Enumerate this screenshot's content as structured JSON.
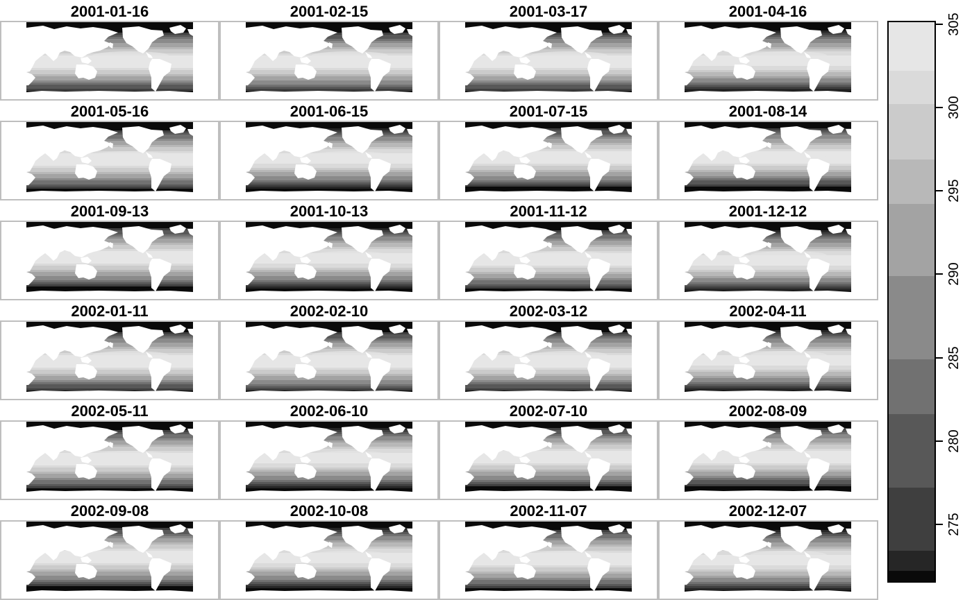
{
  "panels": [
    {
      "title": "2001-01-16"
    },
    {
      "title": "2001-02-15"
    },
    {
      "title": "2001-03-17"
    },
    {
      "title": "2001-04-16"
    },
    {
      "title": "2001-05-16"
    },
    {
      "title": "2001-06-15"
    },
    {
      "title": "2001-07-15"
    },
    {
      "title": "2001-08-14"
    },
    {
      "title": "2001-09-13"
    },
    {
      "title": "2001-10-13"
    },
    {
      "title": "2001-11-12"
    },
    {
      "title": "2001-12-12"
    },
    {
      "title": "2002-01-11"
    },
    {
      "title": "2002-02-10"
    },
    {
      "title": "2002-03-12"
    },
    {
      "title": "2002-04-11"
    },
    {
      "title": "2002-05-11"
    },
    {
      "title": "2002-06-10"
    },
    {
      "title": "2002-07-10"
    },
    {
      "title": "2002-08-09"
    },
    {
      "title": "2002-09-08"
    },
    {
      "title": "2002-10-08"
    },
    {
      "title": "2002-11-07"
    },
    {
      "title": "2002-12-07"
    }
  ],
  "legend": {
    "ticks": [
      "275",
      "280",
      "285",
      "290",
      "295",
      "300",
      "305"
    ],
    "range": [
      271.5,
      305.2
    ],
    "breaks": [
      271.5,
      272.3,
      273.5,
      277.3,
      281.7,
      285.0,
      290.0,
      294.3,
      297.0,
      300.3,
      302.3,
      305.2
    ],
    "colors": [
      "#0a0a0a",
      "#262626",
      "#3f3f3f",
      "#585858",
      "#717171",
      "#8a8a8a",
      "#a3a3a3",
      "#b8b8b8",
      "#cbcbcb",
      "#dadada",
      "#e6e6e6"
    ]
  }
}
